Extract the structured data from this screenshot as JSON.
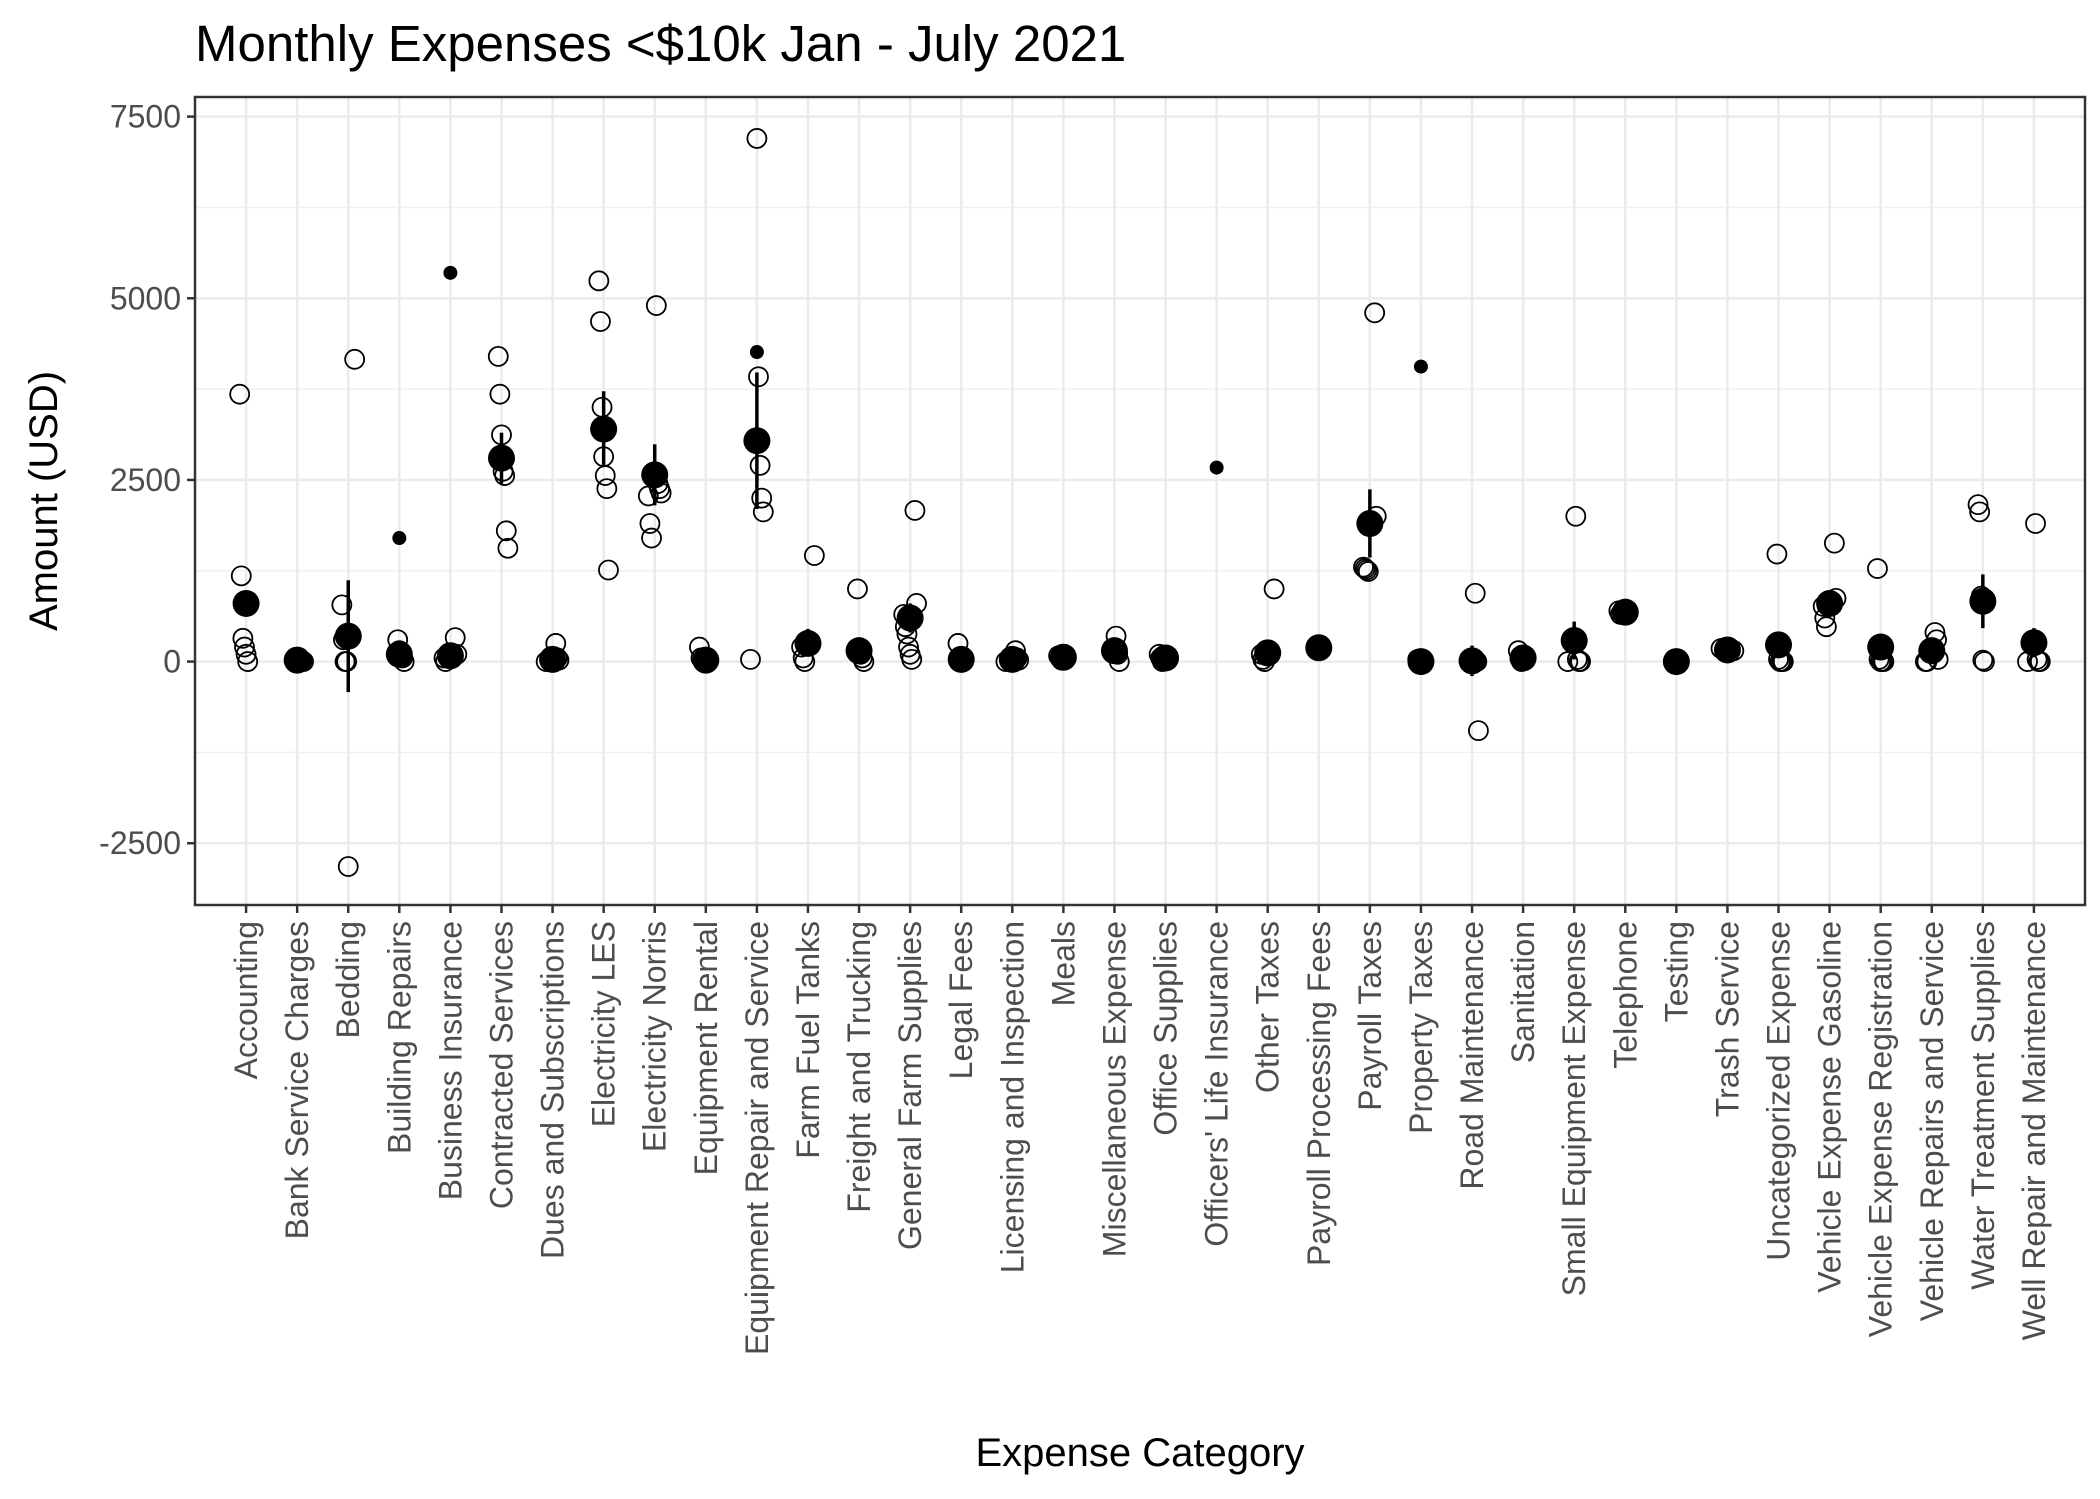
{
  "chart_data": {
    "type": "scatter",
    "title": "Monthly Expenses <$10k Jan - July 2021",
    "xlabel": "Expense Category",
    "ylabel": "Amount (USD)",
    "ylim": [
      -3350,
      7770
    ],
    "yticks": [
      -2500,
      0,
      2500,
      5000,
      7500
    ],
    "grid": true,
    "legend": "none",
    "categories": [
      "Accounting",
      "Bank Service Charges",
      "Bedding",
      "Building Repairs",
      "Business Insurance",
      "Contracted Services",
      "Dues and Subscriptions",
      "Electricity LES",
      "Electricity Norris",
      "Equipment Rental",
      "Equipment Repair and Service",
      "Farm Fuel Tanks",
      "Freight and Trucking",
      "General Farm Supplies",
      "Legal Fees",
      "Licensing and Inspection",
      "Meals",
      "Miscellaneous Expense",
      "Office Supplies",
      "Officers' Life Insurance",
      "Other Taxes",
      "Payroll Processing Fees",
      "Payroll Taxes",
      "Property Taxes",
      "Road Maintenance",
      "Sanitation",
      "Small Equipment Expense",
      "Telephone",
      "Testing",
      "Trash Service",
      "Uncategorized Expense",
      "Vehicle Expense Gasoline",
      "Vehicle Expense Registration",
      "Vehicle Repairs and Service",
      "Water Treatment Supplies",
      "Well Repair and Maintenance"
    ],
    "observations": [
      [
        3680,
        1180,
        320,
        200,
        100,
        0
      ],
      [
        50,
        30,
        20,
        10,
        0
      ],
      [
        4160,
        780,
        300,
        0,
        0,
        -2820
      ],
      [
        300,
        150,
        100,
        50,
        0
      ],
      [
        330,
        100,
        50,
        0
      ],
      [
        4200,
        3680,
        3120,
        2620,
        2560,
        1800,
        1560
      ],
      [
        250,
        50,
        20,
        0
      ],
      [
        5240,
        4680,
        3500,
        2820,
        2560,
        2380,
        1260
      ],
      [
        4900,
        2450,
        2380,
        2320,
        2280,
        1900,
        1700
      ],
      [
        200,
        50,
        20,
        0
      ],
      [
        7200,
        3920,
        2700,
        2250,
        2060,
        30
      ],
      [
        1460,
        200,
        50,
        0
      ],
      [
        1000,
        150,
        100,
        50,
        0
      ],
      [
        2080,
        800,
        650,
        480,
        380,
        200,
        100,
        30
      ],
      [
        250,
        50,
        20,
        0
      ],
      [
        150,
        50,
        20,
        0
      ],
      [
        80,
        50,
        20
      ],
      [
        350,
        100,
        0
      ],
      [
        100,
        50,
        0
      ],
      [],
      [
        1000,
        100,
        30,
        0
      ],
      [
        220,
        150
      ],
      [
        4800,
        2000,
        1300,
        1280,
        1260,
        1240
      ],
      [
        30,
        0
      ],
      [
        940,
        0,
        -950
      ],
      [
        150,
        50,
        0
      ],
      [
        2000,
        30,
        0,
        0,
        0
      ],
      [
        700,
        650
      ],
      [
        30,
        0
      ],
      [
        150,
        180
      ],
      [
        1480,
        30,
        0,
        0,
        0
      ],
      [
        1630,
        870,
        760,
        600,
        480
      ],
      [
        1280,
        30,
        0,
        0,
        0
      ],
      [
        400,
        300,
        30,
        0,
        0
      ],
      [
        2160,
        2060,
        900,
        20,
        0
      ],
      [
        1900,
        30,
        0,
        0,
        0
      ]
    ],
    "singles": [
      {
        "category": "Building Repairs",
        "value": 1700
      },
      {
        "category": "Business Insurance",
        "value": 5350
      },
      {
        "category": "Equipment Repair and Service",
        "value": 4260
      },
      {
        "category": "Officers' Life Insurance",
        "value": 2670
      },
      {
        "category": "Property Taxes",
        "value": 4060
      }
    ],
    "mean": [
      800,
      20,
      350,
      100,
      80,
      2800,
      30,
      3200,
      2570,
      20,
      3040,
      250,
      150,
      600,
      30,
      30,
      60,
      150,
      50,
      0,
      120,
      190,
      1900,
      0,
      10,
      50,
      290,
      680,
      0,
      160,
      230,
      800,
      200,
      150,
      830,
      260
    ],
    "error_low": [
      650,
      0,
      -420,
      50,
      40,
      2450,
      10,
      2700,
      2150,
      0,
      2100,
      150,
      80,
      400,
      10,
      10,
      30,
      60,
      20,
      0,
      40,
      170,
      1430,
      0,
      -200,
      20,
      30,
      620,
      0,
      120,
      80,
      700,
      100,
      50,
      460,
      60
    ],
    "error_high": [
      950,
      40,
      1120,
      150,
      120,
      3150,
      50,
      3720,
      2990,
      40,
      3980,
      450,
      220,
      800,
      50,
      50,
      90,
      240,
      80,
      0,
      200,
      210,
      2370,
      0,
      220,
      80,
      550,
      740,
      0,
      200,
      380,
      900,
      300,
      250,
      1200,
      460
    ]
  }
}
